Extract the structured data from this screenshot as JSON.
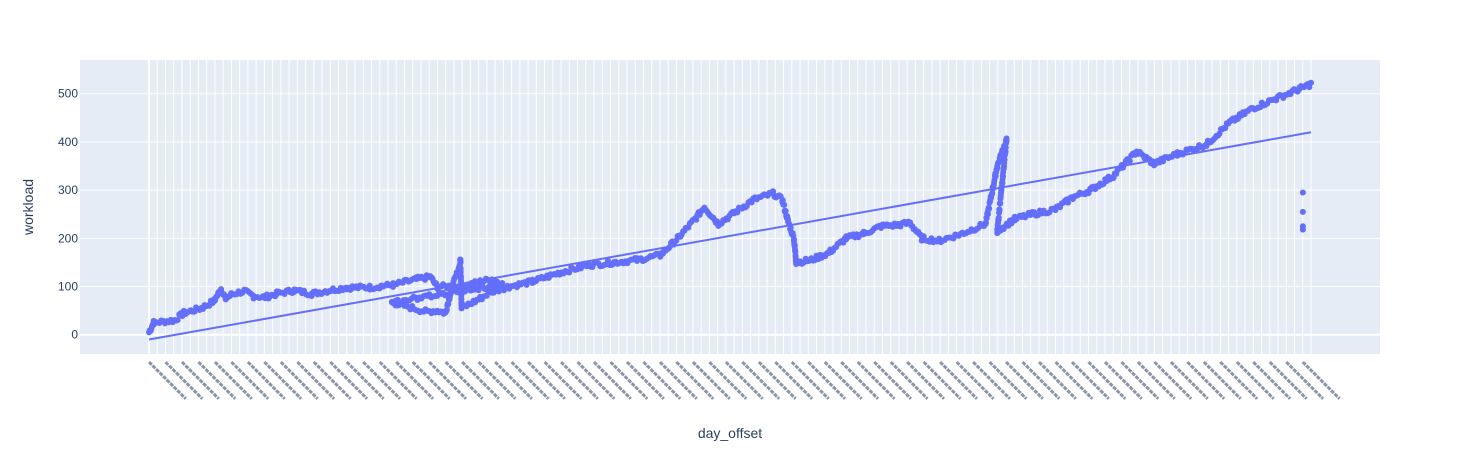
{
  "chart_data": {
    "type": "scatter",
    "xlabel": "day_offset",
    "ylabel": "workload",
    "ylim": [
      -40,
      570
    ],
    "yticks": [
      0,
      100,
      200,
      300,
      400,
      500
    ],
    "x_tick_count": 142,
    "grid": true,
    "legend": "none",
    "colors": {
      "marker": "#636efa",
      "plot_bg": "#e5ecf6",
      "grid": "#ffffff",
      "text": "#2a3f5f"
    },
    "series": [
      {
        "mode": "markers",
        "x_range": [
          0,
          10
        ],
        "anchors": [
          [
            0.0,
            5
          ],
          [
            0.04,
            25
          ],
          [
            0.22,
            30
          ],
          [
            0.3,
            45
          ],
          [
            0.45,
            55
          ],
          [
            0.56,
            70
          ],
          [
            0.62,
            95
          ],
          [
            0.66,
            75
          ],
          [
            0.72,
            85
          ],
          [
            0.82,
            90
          ],
          [
            0.9,
            80
          ],
          [
            1.0,
            78
          ],
          [
            1.1,
            85
          ],
          [
            1.25,
            92
          ],
          [
            1.4,
            85
          ],
          [
            1.55,
            92
          ],
          [
            1.7,
            98
          ],
          [
            1.9,
            98
          ],
          [
            2.0,
            101
          ],
          [
            2.1,
            103
          ],
          [
            2.3,
            115
          ],
          [
            2.42,
            120
          ],
          [
            2.48,
            100
          ],
          [
            2.7,
            100
          ],
          [
            2.85,
            110
          ],
          [
            2.95,
            115
          ],
          [
            3.04,
            105
          ],
          [
            2.09,
            67
          ],
          [
            2.2,
            60
          ],
          [
            2.38,
            48
          ],
          [
            2.48,
            50
          ],
          [
            2.55,
            45
          ],
          [
            2.61,
            100
          ],
          [
            2.67,
            140
          ],
          [
            2.68,
            155
          ],
          [
            2.69,
            55
          ],
          [
            2.85,
            75
          ],
          [
            2.95,
            90
          ],
          [
            3.1,
            100
          ],
          [
            3.3,
            110
          ],
          [
            3.55,
            130
          ],
          [
            3.8,
            145
          ],
          [
            4.0,
            150
          ],
          [
            4.2,
            155
          ],
          [
            4.4,
            165
          ],
          [
            4.55,
            200
          ],
          [
            4.7,
            240
          ],
          [
            4.78,
            265
          ],
          [
            4.9,
            230
          ],
          [
            5.05,
            255
          ],
          [
            5.2,
            280
          ],
          [
            5.37,
            293
          ],
          [
            5.45,
            280
          ],
          [
            5.5,
            235
          ],
          [
            5.55,
            200
          ],
          [
            5.57,
            150
          ],
          [
            5.7,
            155
          ],
          [
            5.85,
            170
          ],
          [
            6.0,
            200
          ],
          [
            6.15,
            210
          ],
          [
            6.3,
            225
          ],
          [
            6.45,
            228
          ],
          [
            6.55,
            232
          ],
          [
            6.65,
            200
          ],
          [
            6.8,
            195
          ],
          [
            7.0,
            210
          ],
          [
            7.2,
            230
          ],
          [
            7.3,
            350
          ],
          [
            7.38,
            405
          ],
          [
            7.3,
            215
          ],
          [
            7.45,
            240
          ],
          [
            7.6,
            250
          ],
          [
            7.8,
            260
          ],
          [
            7.95,
            285
          ],
          [
            8.1,
            300
          ],
          [
            8.3,
            330
          ],
          [
            8.5,
            380
          ],
          [
            8.65,
            355
          ],
          [
            8.85,
            375
          ],
          [
            9.1,
            395
          ],
          [
            9.3,
            440
          ],
          [
            9.5,
            470
          ],
          [
            9.7,
            490
          ],
          [
            9.9,
            510
          ],
          [
            10.0,
            520
          ]
        ],
        "extra_points": [
          [
            9.93,
            295
          ],
          [
            9.93,
            255
          ],
          [
            9.93,
            225
          ],
          [
            9.93,
            218
          ]
        ]
      },
      {
        "mode": "lines",
        "x": [
          0,
          10
        ],
        "y": [
          -10,
          420
        ]
      }
    ]
  }
}
